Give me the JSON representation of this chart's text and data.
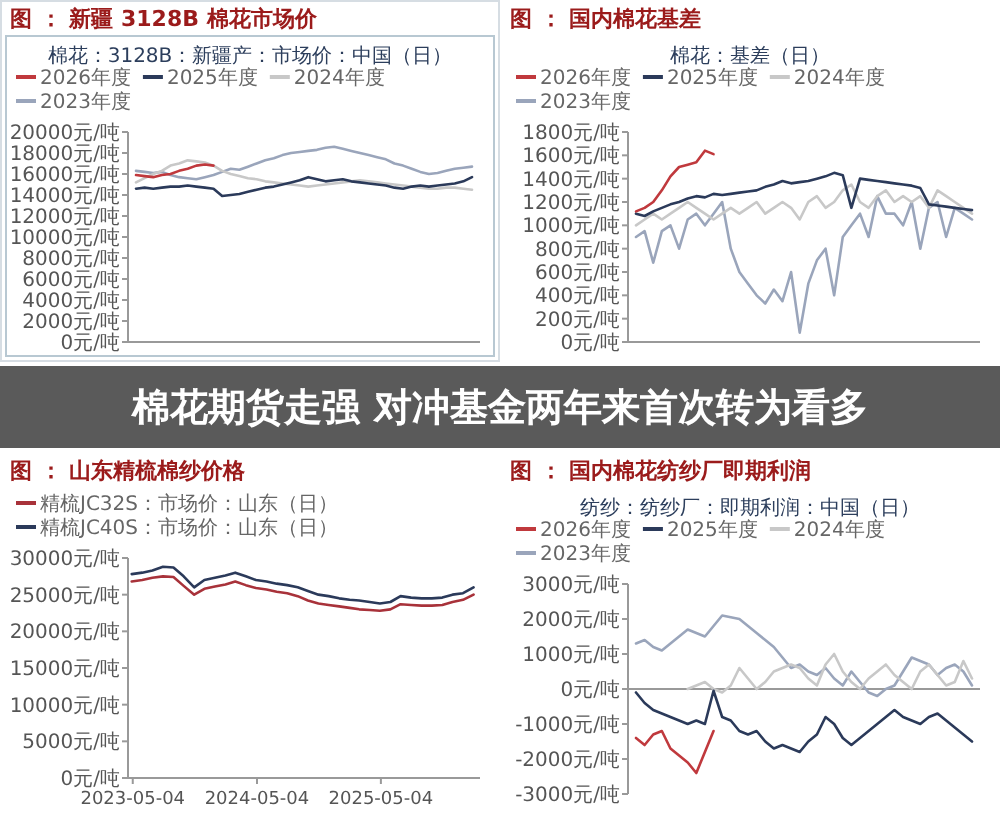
{
  "chart_data": [
    {
      "type": "line",
      "title": "图 ： 新疆 3128B 棉花市场价",
      "subtitle": "棉花：3128B：新疆产：市场价：中国（日）",
      "legend": "top",
      "tick_labels": "y",
      "annotations": [
        "棉花期货走强 对冲基金两年来首次转为看多"
      ],
      "categories": [
        null,
        null,
        null,
        null,
        null,
        null,
        null,
        null,
        null,
        null,
        null,
        null,
        null,
        null,
        null,
        null,
        null,
        null,
        null,
        null,
        null,
        null,
        null,
        null,
        null,
        null,
        null,
        null,
        null,
        null,
        null,
        null,
        null,
        null,
        null,
        null,
        null,
        null,
        null,
        null
      ],
      "ylim": [
        0,
        20000
      ],
      "yticks": [
        {
          "value": 0,
          "label": "0元/吨"
        },
        {
          "value": 2000,
          "label": "2000元/吨"
        },
        {
          "value": 4000,
          "label": "4000元/吨"
        },
        {
          "value": 6000,
          "label": "6000元/吨"
        },
        {
          "value": 8000,
          "label": "8000元/吨"
        },
        {
          "value": 10000,
          "label": "10000元/吨"
        },
        {
          "value": 12000,
          "label": "12000元/吨"
        },
        {
          "value": 14000,
          "label": "14000元/吨"
        },
        {
          "value": 16000,
          "label": "16000元/吨"
        },
        {
          "value": 18000,
          "label": "18000元/吨"
        },
        {
          "value": 20000,
          "label": "20000元/吨"
        }
      ],
      "series": [
        {
          "name": "2026年度",
          "color": "#c0393d",
          "values": [
            15900,
            15800,
            15700,
            15900,
            16000,
            16300,
            16500,
            16800,
            16900,
            16800,
            null,
            null,
            null,
            null,
            null,
            null,
            null,
            null,
            null,
            null,
            null,
            null,
            null,
            null,
            null,
            null,
            null,
            null,
            null,
            null,
            null,
            null,
            null,
            null,
            null,
            null,
            null,
            null,
            null,
            null
          ]
        },
        {
          "name": "2025年度",
          "color": "#2b3a5a",
          "values": [
            14600,
            14700,
            14600,
            14700,
            14800,
            14800,
            14900,
            14800,
            14700,
            14600,
            13900,
            14000,
            14100,
            14300,
            14500,
            14700,
            14800,
            15000,
            15200,
            15400,
            15700,
            15500,
            15300,
            15400,
            15500,
            15300,
            15200,
            15100,
            15000,
            14900,
            14700,
            14600,
            14800,
            14900,
            14800,
            14900,
            15000,
            15100,
            15300,
            15700
          ]
        },
        {
          "name": "2024年度",
          "color": "#c8c8c8",
          "values": [
            15200,
            15600,
            16000,
            16300,
            16800,
            17000,
            17300,
            17200,
            17100,
            16800,
            16300,
            16000,
            15800,
            15600,
            15500,
            15300,
            15200,
            15100,
            15000,
            14900,
            14800,
            14900,
            15000,
            15100,
            15200,
            15300,
            15400,
            15300,
            15200,
            15100,
            15000,
            14900,
            14800,
            14700,
            14600,
            14600,
            14700,
            14700,
            14600,
            14500
          ]
        },
        {
          "name": "2023年度",
          "color": "#9aa5bb",
          "values": [
            16300,
            16200,
            16100,
            16200,
            15900,
            15700,
            15600,
            15500,
            15700,
            15900,
            16200,
            16500,
            16400,
            16700,
            17000,
            17300,
            17500,
            17800,
            18000,
            18100,
            18200,
            18300,
            18500,
            18600,
            18400,
            18200,
            18000,
            17800,
            17600,
            17400,
            17000,
            16800,
            16500,
            16200,
            16000,
            16100,
            16300,
            16500,
            16600,
            16700
          ]
        }
      ]
    },
    {
      "type": "line",
      "title": "图 ： 国内棉花基差",
      "subtitle": "棉花：基差（日）",
      "legend": "top",
      "tick_labels": "y",
      "categories": [
        null,
        null,
        null,
        null,
        null,
        null,
        null,
        null,
        null,
        null,
        null,
        null,
        null,
        null,
        null,
        null,
        null,
        null,
        null,
        null,
        null,
        null,
        null,
        null,
        null,
        null,
        null,
        null,
        null,
        null,
        null,
        null,
        null,
        null,
        null,
        null,
        null,
        null,
        null,
        null
      ],
      "ylim": [
        0,
        1800
      ],
      "yticks": [
        {
          "value": 0,
          "label": "0元/吨"
        },
        {
          "value": 200,
          "label": "200元/吨"
        },
        {
          "value": 400,
          "label": "400元/吨"
        },
        {
          "value": 600,
          "label": "600元/吨"
        },
        {
          "value": 800,
          "label": "800元/吨"
        },
        {
          "value": 1000,
          "label": "1000元/吨"
        },
        {
          "value": 1200,
          "label": "1200元/吨"
        },
        {
          "value": 1400,
          "label": "1400元/吨"
        },
        {
          "value": 1600,
          "label": "1600元/吨"
        },
        {
          "value": 1800,
          "label": "1800元/吨"
        }
      ],
      "series": [
        {
          "name": "2026年度",
          "color": "#c0393d",
          "values": [
            1120,
            1150,
            1200,
            1300,
            1420,
            1500,
            1520,
            1540,
            1640,
            1610,
            null,
            null,
            null,
            null,
            null,
            null,
            null,
            null,
            null,
            null,
            null,
            null,
            null,
            null,
            null,
            null,
            null,
            null,
            null,
            null,
            null,
            null,
            null,
            null,
            null,
            null,
            null,
            null,
            null,
            null
          ]
        },
        {
          "name": "2025年度",
          "color": "#2b3a5a",
          "values": [
            1100,
            1080,
            1120,
            1150,
            1180,
            1200,
            1230,
            1250,
            1240,
            1270,
            1260,
            1270,
            1280,
            1290,
            1300,
            1330,
            1350,
            1380,
            1360,
            1370,
            1380,
            1400,
            1420,
            1450,
            1430,
            1150,
            1400,
            1390,
            1380,
            1370,
            1360,
            1350,
            1340,
            1320,
            1180,
            1170,
            1160,
            1150,
            1140,
            1130
          ]
        },
        {
          "name": "2024年度",
          "color": "#c8c8c8",
          "values": [
            1000,
            1050,
            1100,
            1050,
            1100,
            1150,
            1200,
            1150,
            1100,
            1050,
            1100,
            1150,
            1100,
            1150,
            1200,
            1100,
            1150,
            1200,
            1150,
            1050,
            1200,
            1250,
            1150,
            1200,
            1300,
            1350,
            1200,
            1150,
            1250,
            1300,
            1200,
            1250,
            1200,
            1250,
            1150,
            1300,
            1250,
            1200,
            1150,
            1100
          ]
        },
        {
          "name": "2023年度",
          "color": "#9aa5bb",
          "values": [
            900,
            950,
            680,
            950,
            1000,
            800,
            1050,
            1100,
            1000,
            1100,
            1200,
            800,
            600,
            500,
            400,
            330,
            450,
            350,
            600,
            80,
            500,
            700,
            800,
            400,
            900,
            1000,
            1100,
            900,
            1250,
            1100,
            1100,
            1000,
            1200,
            800,
            1150,
            1200,
            900,
            1150,
            1100,
            1050
          ]
        }
      ]
    },
    {
      "type": "line",
      "title": "图 ： 山东精梳棉纱价格",
      "legend": "top",
      "x": [
        "2023-05",
        "2023-06",
        "2023-07",
        "2023-08",
        "2023-09",
        "2023-10",
        "2023-11",
        "2023-12",
        "2024-01",
        "2024-02",
        "2024-03",
        "2024-04",
        "2024-05",
        "2024-06",
        "2024-07",
        "2024-08",
        "2024-09",
        "2024-10",
        "2024-11",
        "2024-12",
        "2025-01",
        "2025-02",
        "2025-03",
        "2025-04",
        "2025-05",
        "2025-06",
        "2025-07",
        "2025-08",
        "2025-09",
        "2025-10",
        "2025-11",
        "2025-12",
        "2026-01",
        "2026-02"
      ],
      "xlim": [
        "2023-04-20",
        "2026-02-20"
      ],
      "xticks": [
        "2023-05-04",
        "2024-05-04",
        "2025-05-04"
      ],
      "ylim": [
        0,
        30000
      ],
      "yticks": [
        {
          "value": 0,
          "label": "0元/吨"
        },
        {
          "value": 5000,
          "label": "5000元/吨"
        },
        {
          "value": 10000,
          "label": "10000元/吨"
        },
        {
          "value": 15000,
          "label": "15000元/吨"
        },
        {
          "value": 20000,
          "label": "20000元/吨"
        },
        {
          "value": 25000,
          "label": "25000元/吨"
        },
        {
          "value": 30000,
          "label": "30000元/吨"
        }
      ],
      "series": [
        {
          "name": "精梳JC32S：市场价：山东（日）",
          "color": "#a8323a",
          "values": [
            26800,
            27000,
            27300,
            27500,
            27400,
            26200,
            25000,
            25800,
            26100,
            26400,
            26800,
            26300,
            25900,
            25700,
            25400,
            25200,
            24800,
            24200,
            23800,
            23600,
            23400,
            23200,
            23000,
            22900,
            22800,
            23000,
            23700,
            23600,
            23500,
            23500,
            23600,
            24000,
            24300,
            25000
          ]
        },
        {
          "name": "精梳JC40S：市场价：山东（日）",
          "color": "#2b3a5a",
          "values": [
            27800,
            28000,
            28300,
            28800,
            28700,
            27500,
            26000,
            27000,
            27300,
            27600,
            28000,
            27500,
            27000,
            26800,
            26500,
            26300,
            26000,
            25500,
            25000,
            24800,
            24500,
            24300,
            24200,
            24000,
            23800,
            24000,
            24800,
            24600,
            24500,
            24500,
            24600,
            25000,
            25200,
            26000
          ]
        }
      ]
    },
    {
      "type": "line",
      "title": "图 ： 国内棉花纺纱厂即期利润",
      "subtitle": "纺纱：纺纱厂：即期利润：中国（日）",
      "legend": "top",
      "tick_labels": "y",
      "categories": [
        null,
        null,
        null,
        null,
        null,
        null,
        null,
        null,
        null,
        null,
        null,
        null,
        null,
        null,
        null,
        null,
        null,
        null,
        null,
        null,
        null,
        null,
        null,
        null,
        null,
        null,
        null,
        null,
        null,
        null,
        null,
        null,
        null,
        null,
        null,
        null,
        null,
        null,
        null,
        null
      ],
      "ylim": [
        -3000,
        3000
      ],
      "yticks": [
        {
          "value": -3000,
          "label": "-3000元/吨"
        },
        {
          "value": -2000,
          "label": "-2000元/吨"
        },
        {
          "value": -1000,
          "label": "-1000元/吨"
        },
        {
          "value": 0,
          "label": "0元/吨"
        },
        {
          "value": 1000,
          "label": "1000元/吨"
        },
        {
          "value": 2000,
          "label": "2000元/吨"
        },
        {
          "value": 3000,
          "label": "3000元/吨"
        }
      ],
      "series": [
        {
          "name": "2026年度",
          "color": "#c0393d",
          "values": [
            -1400,
            -1600,
            -1300,
            -1200,
            -1700,
            -1900,
            -2100,
            -2400,
            -1800,
            -1200,
            null,
            null,
            null,
            null,
            null,
            null,
            null,
            null,
            null,
            null,
            null,
            null,
            null,
            null,
            null,
            null,
            null,
            null,
            null,
            null,
            null,
            null,
            null,
            null,
            null,
            null,
            null,
            null,
            null,
            null
          ]
        },
        {
          "name": "2025年度",
          "color": "#2b3a5a",
          "values": [
            -100,
            -400,
            -600,
            -700,
            -800,
            -900,
            -1000,
            -900,
            -1000,
            -50,
            -800,
            -900,
            -1200,
            -1300,
            -1200,
            -1500,
            -1700,
            -1600,
            -1700,
            -1800,
            -1500,
            -1300,
            -800,
            -1000,
            -1400,
            -1600,
            -1400,
            -1200,
            -1000,
            -800,
            -600,
            -800,
            -900,
            -1000,
            -800,
            -700,
            -900,
            -1100,
            -1300,
            -1500
          ]
        },
        {
          "name": "2024年度",
          "color": "#c8c8c8",
          "values": [
            null,
            null,
            null,
            null,
            null,
            null,
            0,
            100,
            200,
            0,
            -100,
            100,
            600,
            300,
            0,
            200,
            500,
            600,
            700,
            600,
            300,
            100,
            700,
            1000,
            500,
            200,
            0,
            300,
            500,
            700,
            400,
            200,
            0,
            500,
            700,
            400,
            100,
            200,
            800,
            300
          ]
        },
        {
          "name": "2023年度",
          "color": "#9aa5bb",
          "values": [
            1300,
            1400,
            1200,
            1100,
            1300,
            1500,
            1700,
            1600,
            1500,
            1800,
            2100,
            2050,
            2000,
            1800,
            1600,
            1400,
            1200,
            900,
            600,
            700,
            500,
            400,
            600,
            300,
            100,
            500,
            200,
            -100,
            -200,
            0,
            100,
            500,
            900,
            800,
            700,
            400,
            600,
            700,
            500,
            100
          ]
        }
      ]
    }
  ]
}
